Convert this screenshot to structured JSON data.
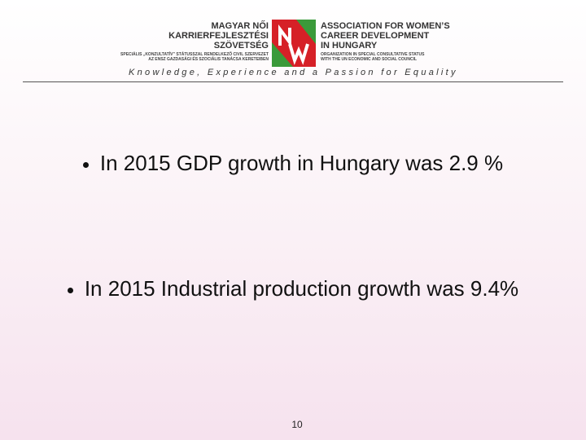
{
  "header": {
    "logo_left": [
      "MAGYAR NŐI",
      "KARRIERFEJLESZTÉSI",
      "SZÖVETSÉG"
    ],
    "logo_left_note": [
      "SPECIÁLIS „KONZULTATÍV” STÁTUSSZAL RENDELKEZŐ CIVIL SZERVEZET",
      "AZ ENSZ GAZDASÁGI ÉS SZOCIÁLIS TANÁCSA KERETEIBEN"
    ],
    "logo_right": [
      "ASSOCIATION FOR WOMEN’S",
      "CAREER DEVELOPMENT",
      "IN HUNGARY"
    ],
    "logo_right_note": [
      "ORGANIZATION IN SPECIAL CONSULTATIVE STATUS",
      "WITH THE UN ECONOMIC AND SOCIAL COUNCIL"
    ],
    "tagline": "Knowledge, Experience and a Passion for Equality"
  },
  "bullets": [
    "In 2015 GDP growth in Hungary was 2.9 %",
    "In 2015 Industrial production growth was 9.4%"
  ],
  "page_number": "10"
}
